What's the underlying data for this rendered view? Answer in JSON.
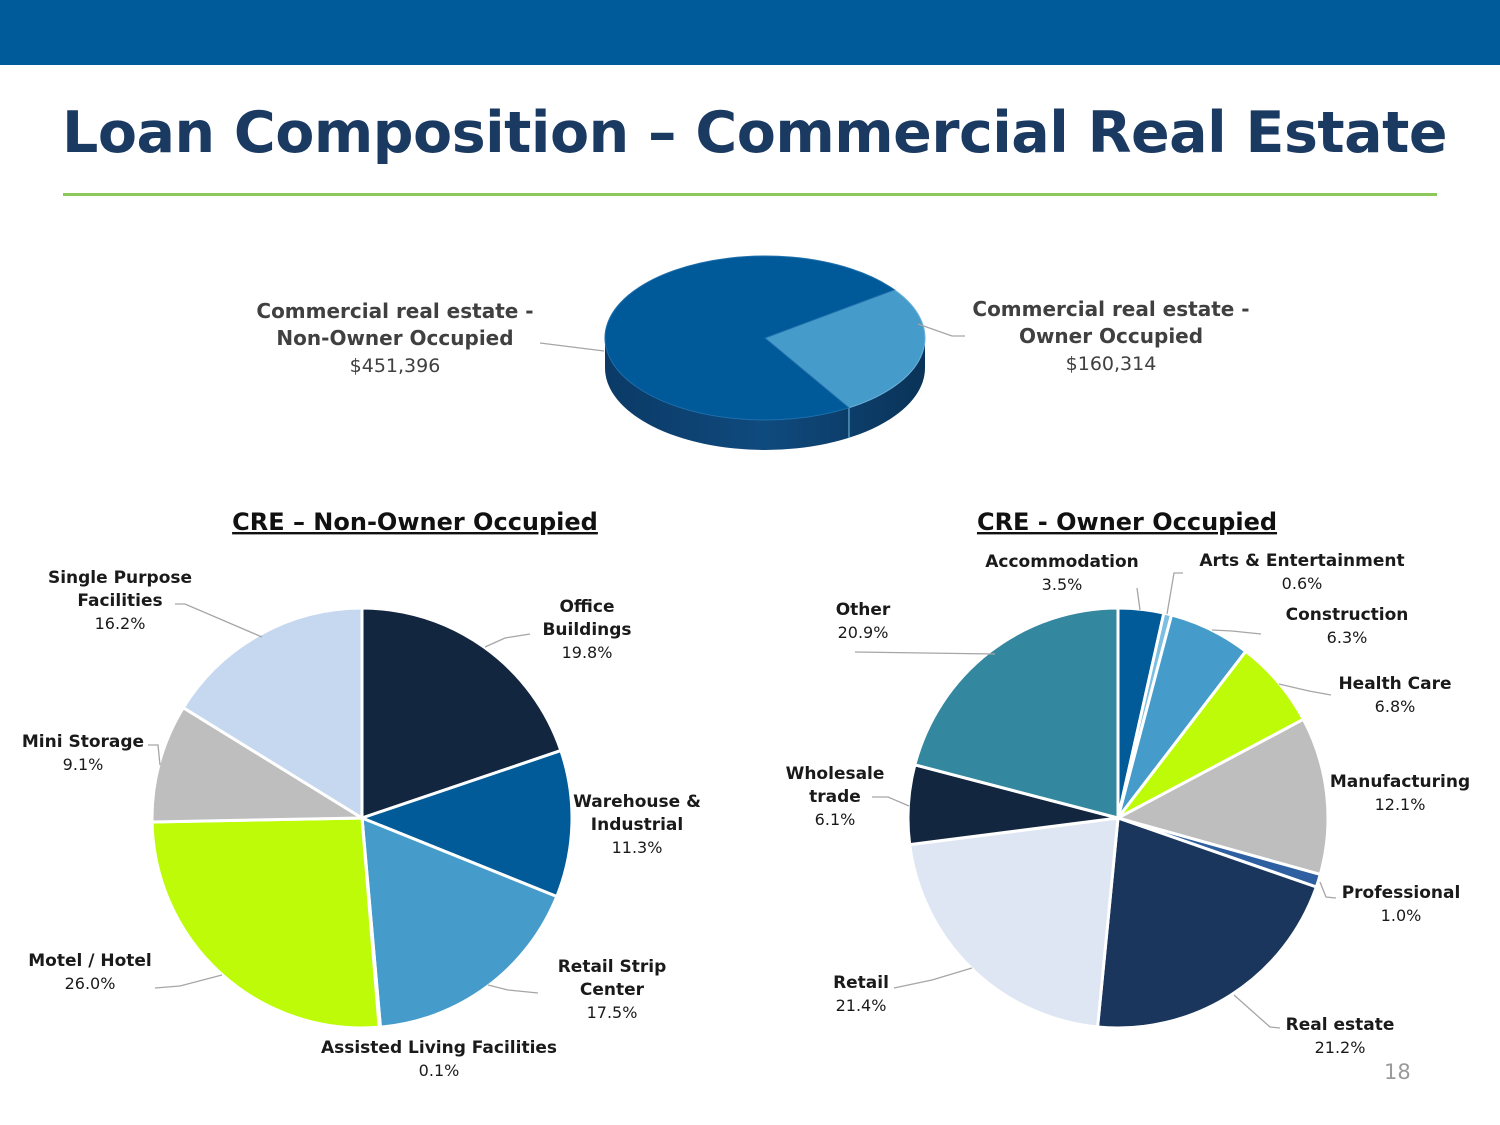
{
  "slide": {
    "title": "Loan Composition – Commercial Real Estate",
    "page_number": "18"
  },
  "colors": {
    "top_bar": "#005b9a",
    "title": "#1b3a62",
    "rule": "#8dc85a"
  },
  "chart_data": [
    {
      "type": "pie",
      "style": "3d",
      "title": "",
      "slices": [
        {
          "label_lines": [
            "Commercial real estate -",
            "Non-Owner Occupied"
          ],
          "value_label": "$451,396",
          "value": 451396,
          "color": "#005a9a"
        },
        {
          "label_lines": [
            "Commercial real estate -",
            "Owner Occupied"
          ],
          "value_label": "$160,314",
          "value": 160314,
          "color": "#459bca"
        }
      ]
    },
    {
      "type": "pie",
      "title": "CRE – Non-Owner Occupied",
      "slices": [
        {
          "label_lines": [
            "Office",
            "Buildings"
          ],
          "value_label": "19.8%",
          "value": 19.8,
          "color": "#13263f"
        },
        {
          "label_lines": [
            "Warehouse &",
            "Industrial"
          ],
          "value_label": "11.3%",
          "value": 11.3,
          "color": "#005b98"
        },
        {
          "label_lines": [
            "Retail Strip",
            "Center"
          ],
          "value_label": "17.5%",
          "value": 17.5,
          "color": "#459bca"
        },
        {
          "label_lines": [
            "Assisted Living Facilities"
          ],
          "value_label": "0.1%",
          "value": 0.1,
          "color": "#1b3a62"
        },
        {
          "label_lines": [
            "Motel / Hotel"
          ],
          "value_label": "26.0%",
          "value": 26.0,
          "color": "#bdfb08"
        },
        {
          "label_lines": [
            "Mini Storage"
          ],
          "value_label": "9.1%",
          "value": 9.1,
          "color": "#bebebe"
        },
        {
          "label_lines": [
            "Single Purpose",
            "Facilities"
          ],
          "value_label": "16.2%",
          "value": 16.2,
          "color": "#c6d8ef"
        }
      ]
    },
    {
      "type": "pie",
      "title": "CRE - Owner Occupied",
      "slices": [
        {
          "label_lines": [
            "Accommodation"
          ],
          "value_label": "3.5%",
          "value": 3.5,
          "color": "#005b98"
        },
        {
          "label_lines": [
            "Arts & Entertainment"
          ],
          "value_label": "0.6%",
          "value": 0.6,
          "color": "#7dbfe0"
        },
        {
          "label_lines": [
            "Construction"
          ],
          "value_label": "6.3%",
          "value": 6.3,
          "color": "#459bca"
        },
        {
          "label_lines": [
            "Health Care"
          ],
          "value_label": "6.8%",
          "value": 6.8,
          "color": "#bdfb08"
        },
        {
          "label_lines": [
            "Manufacturing"
          ],
          "value_label": "12.1%",
          "value": 12.1,
          "color": "#bebebe"
        },
        {
          "label_lines": [
            "Professional"
          ],
          "value_label": "1.0%",
          "value": 1.0,
          "color": "#2e5fa0"
        },
        {
          "label_lines": [
            "Real estate"
          ],
          "value_label": "21.2%",
          "value": 21.2,
          "color": "#1a365d"
        },
        {
          "label_lines": [
            "Retail"
          ],
          "value_label": "21.4%",
          "value": 21.4,
          "color": "#dde6f2"
        },
        {
          "label_lines": [
            "Wholesale",
            "trade"
          ],
          "value_label": "6.1%",
          "value": 6.1,
          "color": "#13263f"
        },
        {
          "label_lines": [
            "Other"
          ],
          "value_label": "20.9%",
          "value": 20.9,
          "color": "#33879f"
        }
      ]
    }
  ]
}
